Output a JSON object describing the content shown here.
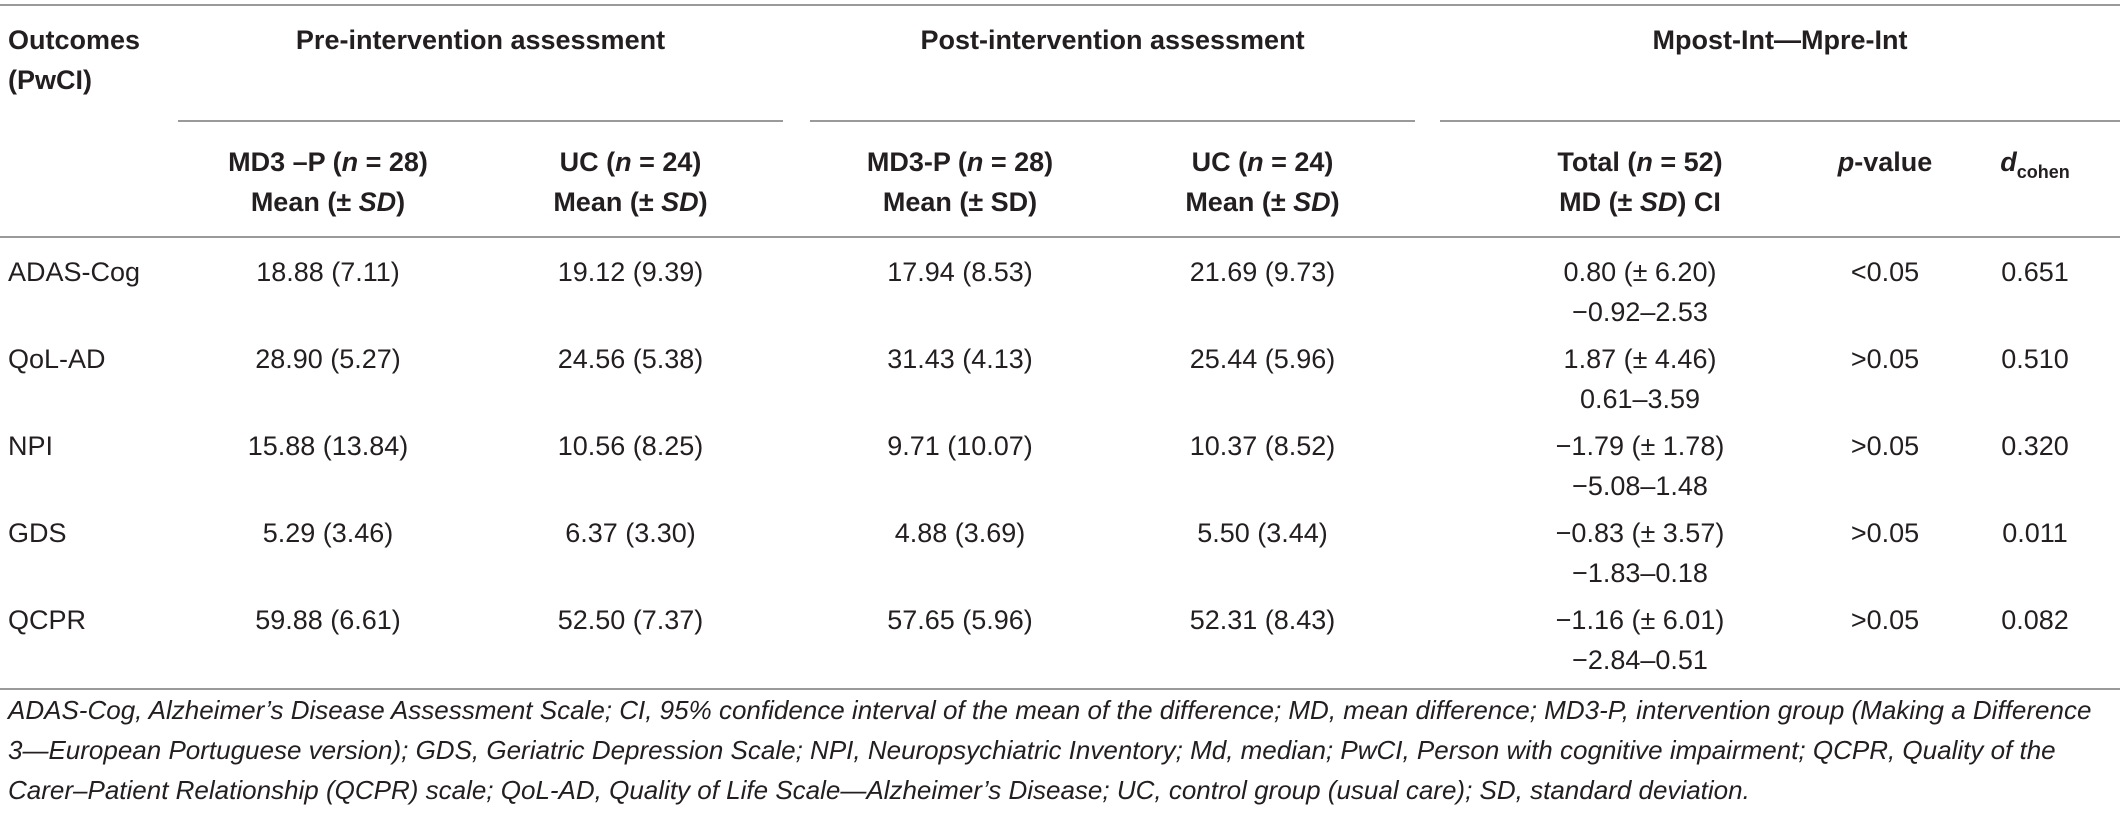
{
  "header": {
    "outcomes_line1": "Outcomes",
    "outcomes_line2": "(PwCI)",
    "group_pre": "Pre-intervention assessment",
    "group_post": "Post-intervention assessment",
    "group_diff": "Mpost-Int—Mpre-Int",
    "col_pre_md3": {
      "a": "MD3 –P (",
      "n": "n",
      "b": " = 28)",
      "mean": "Mean (± ",
      "sd": "SD",
      "close": ")"
    },
    "col_pre_uc": {
      "a": "UC (",
      "n": "n",
      "b": " = 24)",
      "mean": "Mean (± ",
      "sd": "SD",
      "close": ")"
    },
    "col_post_md3": {
      "a": "MD3-P (",
      "n": "n",
      "b": " = 28)",
      "mean": "Mean (± SD)"
    },
    "col_post_uc": {
      "a": "UC (",
      "n": "n",
      "b": " = 24)",
      "mean": "Mean (± ",
      "sd": "SD",
      "close": ")"
    },
    "col_total": {
      "a": "Total (",
      "n": "n",
      "b": " = 52)",
      "md": "MD (± ",
      "sd": "SD",
      "close": ") CI"
    },
    "col_p": {
      "p": "p",
      "rest": "-value"
    },
    "col_d": {
      "d": "d",
      "sub": "cohen"
    }
  },
  "rows": [
    {
      "outcome": "ADAS-Cog",
      "pre_md3": "18.88 (7.11)",
      "pre_uc": "19.12 (9.39)",
      "post_md3": "17.94 (8.53)",
      "post_uc": "21.69 (9.73)",
      "md": "0.80 (± 6.20)",
      "ci": "−0.92–2.53",
      "p": "<0.05",
      "d": "0.651"
    },
    {
      "outcome": "QoL-AD",
      "pre_md3": "28.90 (5.27)",
      "pre_uc": "24.56 (5.38)",
      "post_md3": "31.43 (4.13)",
      "post_uc": "25.44 (5.96)",
      "md": "1.87 (± 4.46)",
      "ci": "0.61–3.59",
      "p": ">0.05",
      "d": "0.510"
    },
    {
      "outcome": "NPI",
      "pre_md3": "15.88 (13.84)",
      "pre_uc": "10.56 (8.25)",
      "post_md3": "9.71 (10.07)",
      "post_uc": "10.37 (8.52)",
      "md": "−1.79 (± 1.78)",
      "ci": "−5.08–1.48",
      "p": ">0.05",
      "d": "0.320"
    },
    {
      "outcome": "GDS",
      "pre_md3": "5.29 (3.46)",
      "pre_uc": "6.37 (3.30)",
      "post_md3": "4.88 (3.69)",
      "post_uc": "5.50 (3.44)",
      "md": "−0.83 (± 3.57)",
      "ci": "−1.83–0.18",
      "p": ">0.05",
      "d": "0.011"
    },
    {
      "outcome": "QCPR",
      "pre_md3": "59.88 (6.61)",
      "pre_uc": "52.50 (7.37)",
      "post_md3": "57.65 (5.96)",
      "post_uc": "52.31 (8.43)",
      "md": "−1.16 (± 6.01)",
      "ci": "−2.84–0.51",
      "p": ">0.05",
      "d": "0.082"
    }
  ],
  "footnote": "ADAS-Cog, Alzheimer’s Disease Assessment Scale; CI, 95% confidence interval of the mean of the difference; MD, mean difference; MD3-P, intervention group (Making a Difference 3—European Portuguese version); GDS, Geriatric Depression Scale; NPI, Neuropsychiatric Inventory; Md, median; PwCI, Person with cognitive impairment; QCPR, Quality of the Carer–Patient Relationship (QCPR) scale; QoL-AD, Quality of Life Scale—Alzheimer’s Disease; UC, control group (usual care); SD, standard deviation."
}
